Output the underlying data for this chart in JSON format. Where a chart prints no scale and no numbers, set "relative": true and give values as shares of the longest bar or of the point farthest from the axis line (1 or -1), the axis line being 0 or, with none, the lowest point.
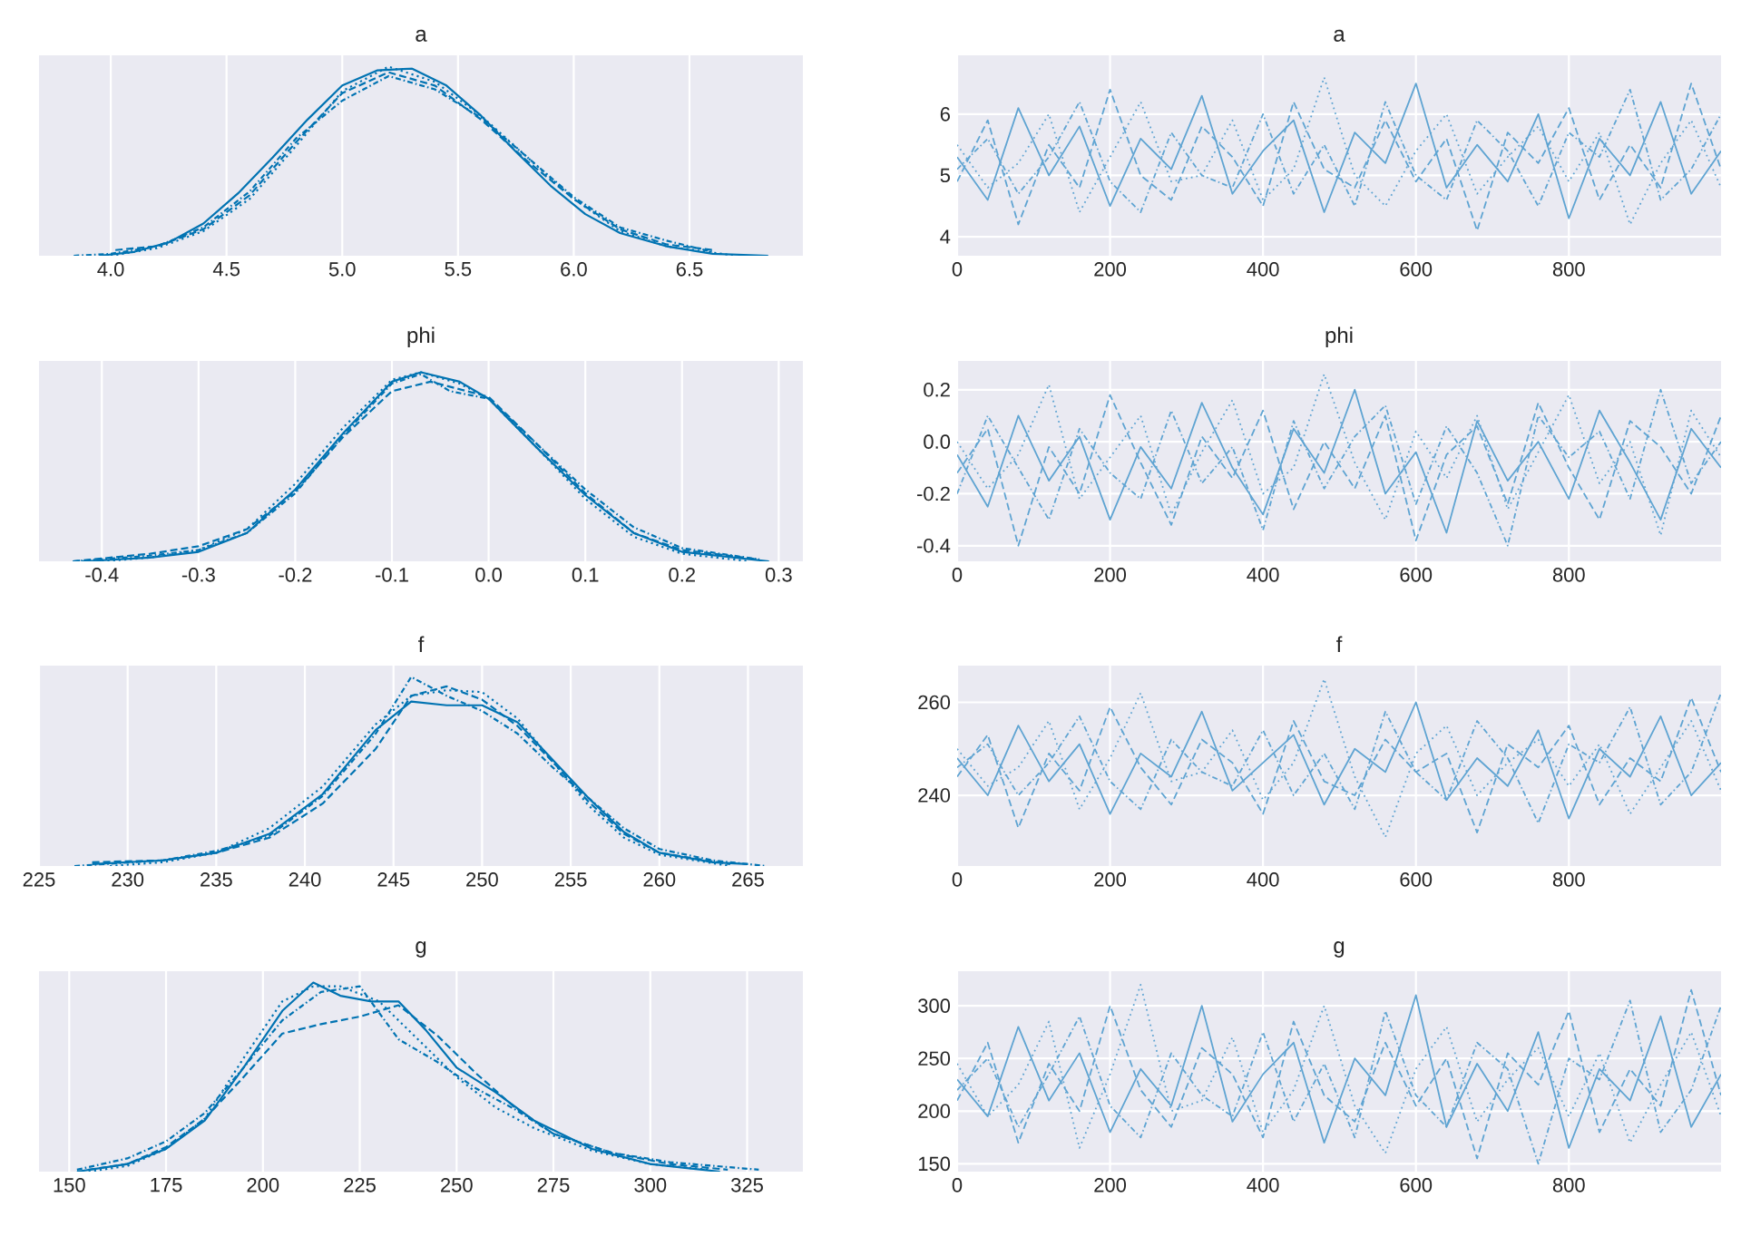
{
  "chart_data": [
    {
      "type": "line",
      "title": "a",
      "relative": true,
      "grid": "x",
      "tick_labels": "x",
      "xlim": [
        3.69,
        6.99
      ],
      "xticks": [
        {
          "value": 4.0,
          "label": "4.0"
        },
        4.5,
        {
          "value": 5.0,
          "label": "5.0"
        },
        5.5,
        {
          "value": 6.0,
          "label": "6.0"
        },
        6.5
      ],
      "series": [
        {
          "color": "#0173b2",
          "line_style": "solid",
          "x": [
            3.95,
            4.1,
            4.25,
            4.4,
            4.55,
            4.7,
            4.85,
            5.0,
            5.15,
            5.3,
            5.45,
            5.6,
            5.75,
            5.9,
            6.05,
            6.2,
            6.4,
            6.6,
            6.84
          ],
          "values": [
            0.0,
            0.02,
            0.07,
            0.17,
            0.33,
            0.52,
            0.72,
            0.9,
            0.98,
            0.99,
            0.9,
            0.74,
            0.55,
            0.37,
            0.22,
            0.12,
            0.05,
            0.01,
            0.0
          ]
        },
        {
          "color": "#0173b2",
          "line_style": "dashed",
          "x": [
            4.02,
            4.2,
            4.4,
            4.6,
            4.8,
            5.0,
            5.2,
            5.4,
            5.6,
            5.8,
            6.0,
            6.2,
            6.4,
            6.6
          ],
          "values": [
            0.03,
            0.05,
            0.14,
            0.32,
            0.6,
            0.86,
            0.97,
            0.9,
            0.72,
            0.5,
            0.3,
            0.14,
            0.06,
            0.03
          ]
        },
        {
          "color": "#0173b2",
          "line_style": "dotted",
          "x": [
            4.0,
            4.2,
            4.4,
            4.6,
            4.8,
            5.0,
            5.2,
            5.4,
            5.6,
            5.8,
            6.0,
            6.2,
            6.4,
            6.7
          ],
          "values": [
            0.0,
            0.04,
            0.13,
            0.3,
            0.58,
            0.87,
            1.0,
            0.92,
            0.74,
            0.52,
            0.3,
            0.13,
            0.05,
            0.0
          ]
        },
        {
          "color": "#0173b2",
          "line_style": "dashdot",
          "x": [
            3.84,
            4.0,
            4.2,
            4.4,
            4.6,
            4.8,
            5.0,
            5.2,
            5.4,
            5.6,
            5.8,
            6.0,
            6.2,
            6.4,
            6.6
          ],
          "values": [
            0.0,
            0.01,
            0.05,
            0.15,
            0.34,
            0.62,
            0.82,
            0.95,
            0.88,
            0.73,
            0.52,
            0.31,
            0.15,
            0.08,
            0.02
          ]
        }
      ]
    },
    {
      "type": "line",
      "title": "a",
      "grid": true,
      "xlim": [
        0,
        999
      ],
      "xticks": [
        0,
        200,
        400,
        600,
        800
      ],
      "ylim": [
        3.69,
        6.96
      ],
      "yticks": [
        4,
        5,
        6
      ],
      "series": [
        {
          "color": "#5fa4d2",
          "line_style": "solid",
          "x": [
            0,
            40,
            80,
            120,
            160,
            200,
            240,
            280,
            320,
            360,
            400,
            440,
            480,
            520,
            560,
            600,
            640,
            680,
            720,
            760,
            800,
            840,
            880,
            920,
            960,
            999
          ],
          "values": [
            5.3,
            4.6,
            6.1,
            5.0,
            5.8,
            4.5,
            5.6,
            5.1,
            6.3,
            4.7,
            5.4,
            5.9,
            4.4,
            5.7,
            5.2,
            6.5,
            4.8,
            5.5,
            4.9,
            6.0,
            4.3,
            5.6,
            5.0,
            6.2,
            4.7,
            5.4
          ]
        },
        {
          "color": "#5fa4d2",
          "line_style": "dashed",
          "x": [
            0,
            40,
            80,
            120,
            160,
            200,
            240,
            280,
            320,
            360,
            400,
            440,
            480,
            520,
            560,
            600,
            640,
            680,
            720,
            760,
            800,
            840,
            880,
            920,
            960,
            999
          ],
          "values": [
            4.9,
            5.9,
            4.2,
            5.5,
            4.8,
            6.4,
            5.0,
            4.6,
            5.8,
            5.3,
            4.5,
            6.2,
            5.1,
            4.8,
            5.9,
            4.9,
            5.6,
            4.1,
            5.7,
            5.2,
            6.1,
            4.6,
            5.5,
            4.8,
            6.5,
            5.1
          ]
        },
        {
          "color": "#5fa4d2",
          "line_style": "dotted",
          "x": [
            0,
            40,
            80,
            120,
            160,
            200,
            240,
            280,
            320,
            360,
            400,
            440,
            480,
            520,
            560,
            600,
            640,
            680,
            720,
            760,
            800,
            840,
            880,
            920,
            960,
            999
          ],
          "values": [
            5.5,
            4.8,
            5.2,
            6.0,
            4.4,
            5.3,
            6.2,
            4.9,
            5.0,
            5.9,
            4.6,
            5.1,
            6.6,
            5.0,
            4.5,
            5.4,
            6.0,
            4.7,
            5.3,
            5.8,
            4.9,
            5.7,
            4.2,
            5.2,
            5.9,
            4.8
          ]
        },
        {
          "color": "#5fa4d2",
          "line_style": "dashdot",
          "x": [
            0,
            40,
            80,
            120,
            160,
            200,
            240,
            280,
            320,
            360,
            400,
            440,
            480,
            520,
            560,
            600,
            640,
            680,
            720,
            760,
            800,
            840,
            880,
            920,
            960,
            999
          ],
          "values": [
            5.1,
            5.6,
            4.7,
            5.3,
            6.2,
            4.9,
            4.4,
            5.7,
            5.0,
            4.8,
            6.0,
            4.7,
            5.5,
            4.5,
            6.2,
            5.0,
            4.6,
            5.9,
            5.4,
            4.5,
            5.7,
            5.3,
            6.4,
            4.6,
            5.1,
            6.0
          ]
        }
      ]
    },
    {
      "type": "line",
      "title": "phi",
      "relative": true,
      "grid": "x",
      "tick_labels": "x",
      "xlim": [
        -0.465,
        0.325
      ],
      "xticks": [
        -0.4,
        -0.3,
        -0.2,
        -0.1,
        {
          "value": 0,
          "label": "0.0"
        },
        0.1,
        0.2,
        0.3
      ],
      "series": [
        {
          "color": "#0173b2",
          "line_style": "solid",
          "x": [
            -0.42,
            -0.35,
            -0.3,
            -0.25,
            -0.2,
            -0.15,
            -0.1,
            -0.07,
            -0.03,
            0.0,
            0.05,
            0.1,
            0.15,
            0.2,
            0.29
          ],
          "values": [
            0.0,
            0.02,
            0.05,
            0.15,
            0.38,
            0.68,
            0.95,
            1.0,
            0.95,
            0.86,
            0.6,
            0.35,
            0.15,
            0.05,
            0.0
          ]
        },
        {
          "color": "#0173b2",
          "line_style": "dashed",
          "x": [
            -0.43,
            -0.35,
            -0.3,
            -0.25,
            -0.2,
            -0.15,
            -0.1,
            -0.06,
            0.0,
            0.05,
            0.1,
            0.15,
            0.2,
            0.28
          ],
          "values": [
            0.0,
            0.04,
            0.08,
            0.17,
            0.37,
            0.66,
            0.9,
            0.95,
            0.87,
            0.62,
            0.36,
            0.15,
            0.06,
            0.01
          ]
        },
        {
          "color": "#0173b2",
          "line_style": "dotted",
          "x": [
            -0.4,
            -0.35,
            -0.3,
            -0.25,
            -0.2,
            -0.15,
            -0.1,
            -0.07,
            -0.03,
            0.0,
            0.05,
            0.1,
            0.15,
            0.2,
            0.27
          ],
          "values": [
            0.0,
            0.02,
            0.06,
            0.17,
            0.41,
            0.71,
            0.96,
            1.0,
            0.94,
            0.86,
            0.6,
            0.33,
            0.13,
            0.04,
            0.0
          ]
        },
        {
          "color": "#0173b2",
          "line_style": "dashdot",
          "x": [
            -0.43,
            -0.35,
            -0.3,
            -0.25,
            -0.2,
            -0.15,
            -0.1,
            -0.07,
            -0.04,
            0.0,
            0.05,
            0.1,
            0.15,
            0.2,
            0.28
          ],
          "values": [
            0.0,
            0.03,
            0.06,
            0.15,
            0.36,
            0.67,
            0.94,
            0.99,
            0.9,
            0.86,
            0.62,
            0.38,
            0.18,
            0.07,
            0.01
          ]
        }
      ]
    },
    {
      "type": "line",
      "title": "phi",
      "grid": true,
      "xlim": [
        0,
        999
      ],
      "xticks": [
        0,
        200,
        400,
        600,
        800
      ],
      "ylim": [
        -0.46,
        0.311
      ],
      "yticks": [
        -0.4,
        -0.2,
        {
          "value": 0,
          "label": "0.0"
        },
        0.2
      ],
      "series": [
        {
          "color": "#5fa4d2",
          "line_style": "solid",
          "x": [
            0,
            40,
            80,
            120,
            160,
            200,
            240,
            280,
            320,
            360,
            400,
            440,
            480,
            520,
            560,
            600,
            640,
            680,
            720,
            760,
            800,
            840,
            880,
            920,
            960,
            999
          ],
          "values": [
            -0.05,
            -0.25,
            0.1,
            -0.15,
            0.02,
            -0.3,
            -0.02,
            -0.18,
            0.15,
            -0.1,
            -0.28,
            0.05,
            -0.12,
            0.2,
            -0.2,
            -0.04,
            -0.35,
            0.08,
            -0.15,
            0.0,
            -0.22,
            0.12,
            -0.08,
            -0.3,
            0.05,
            -0.1
          ]
        },
        {
          "color": "#5fa4d2",
          "line_style": "dashed",
          "x": [
            0,
            40,
            80,
            120,
            160,
            200,
            240,
            280,
            320,
            360,
            400,
            440,
            480,
            520,
            560,
            600,
            640,
            680,
            720,
            760,
            800,
            840,
            880,
            920,
            960,
            999
          ],
          "values": [
            -0.12,
            0.05,
            -0.4,
            -0.02,
            -0.2,
            0.18,
            -0.08,
            -0.32,
            0.02,
            -0.14,
            0.12,
            -0.26,
            0.0,
            -0.18,
            0.1,
            -0.38,
            -0.05,
            0.06,
            -0.24,
            0.15,
            -0.1,
            -0.3,
            0.08,
            -0.02,
            -0.2,
            0.1
          ]
        },
        {
          "color": "#5fa4d2",
          "line_style": "dotted",
          "x": [
            0,
            40,
            80,
            120,
            160,
            200,
            240,
            280,
            320,
            360,
            400,
            440,
            480,
            520,
            560,
            600,
            640,
            680,
            720,
            760,
            800,
            840,
            880,
            920,
            960,
            999
          ],
          "values": [
            0.0,
            -0.18,
            -0.05,
            0.22,
            -0.22,
            -0.06,
            0.1,
            -0.28,
            -0.04,
            0.16,
            -0.2,
            -0.1,
            0.26,
            -0.08,
            -0.3,
            0.04,
            -0.14,
            0.1,
            -0.26,
            -0.04,
            0.18,
            -0.16,
            0.0,
            -0.36,
            0.12,
            -0.06
          ]
        },
        {
          "color": "#5fa4d2",
          "line_style": "dashdot",
          "x": [
            0,
            40,
            80,
            120,
            160,
            200,
            240,
            280,
            320,
            360,
            400,
            440,
            480,
            520,
            560,
            600,
            640,
            680,
            720,
            760,
            800,
            840,
            880,
            920,
            960,
            999
          ],
          "values": [
            -0.2,
            0.1,
            -0.1,
            -0.3,
            0.05,
            -0.12,
            -0.22,
            0.12,
            -0.16,
            -0.02,
            -0.34,
            0.08,
            -0.18,
            0.02,
            0.14,
            -0.24,
            0.06,
            -0.12,
            -0.4,
            0.1,
            -0.06,
            0.04,
            -0.22,
            0.2,
            -0.16,
            0.0
          ]
        }
      ]
    },
    {
      "type": "line",
      "title": "f",
      "relative": true,
      "grid": "x",
      "tick_labels": "x",
      "xlim": [
        225.0,
        268.1
      ],
      "xticks": [
        225,
        230,
        235,
        240,
        245,
        250,
        255,
        260,
        265
      ],
      "series": [
        {
          "color": "#0173b2",
          "line_style": "solid",
          "x": [
            228,
            232,
            235,
            238,
            241,
            244,
            246,
            248,
            250,
            252,
            254,
            256,
            258,
            260,
            263,
            265
          ],
          "values": [
            0.01,
            0.03,
            0.07,
            0.17,
            0.38,
            0.72,
            0.87,
            0.85,
            0.85,
            0.76,
            0.56,
            0.36,
            0.18,
            0.07,
            0.02,
            0.01
          ]
        },
        {
          "color": "#0173b2",
          "line_style": "dashed",
          "x": [
            228,
            232,
            235,
            238,
            241,
            244,
            246,
            248,
            250,
            252,
            254,
            256,
            258,
            260,
            264
          ],
          "values": [
            0.02,
            0.03,
            0.07,
            0.15,
            0.33,
            0.62,
            0.9,
            0.95,
            0.88,
            0.74,
            0.55,
            0.34,
            0.17,
            0.07,
            0.01
          ]
        },
        {
          "color": "#0173b2",
          "line_style": "dotted",
          "x": [
            229,
            232,
            235,
            238,
            241,
            244,
            246,
            248,
            250,
            252,
            254,
            256,
            258,
            260,
            264
          ],
          "values": [
            0.0,
            0.02,
            0.07,
            0.2,
            0.42,
            0.75,
            0.9,
            0.93,
            0.92,
            0.78,
            0.55,
            0.32,
            0.15,
            0.06,
            0.0
          ]
        },
        {
          "color": "#0173b2",
          "line_style": "dashdot",
          "x": [
            227,
            232,
            235,
            238,
            241,
            244,
            246,
            248,
            250,
            252,
            254,
            256,
            258,
            260,
            263,
            266
          ],
          "values": [
            0.0,
            0.03,
            0.08,
            0.16,
            0.37,
            0.7,
            1.0,
            0.9,
            0.82,
            0.7,
            0.52,
            0.36,
            0.2,
            0.09,
            0.03,
            0.0
          ]
        }
      ]
    },
    {
      "type": "line",
      "title": "f",
      "grid": true,
      "xlim": [
        0,
        999
      ],
      "xticks": [
        0,
        200,
        400,
        600,
        800
      ],
      "ylim": [
        224.8,
        267.9
      ],
      "yticks": [
        240,
        260
      ],
      "series": [
        {
          "color": "#5fa4d2",
          "line_style": "solid",
          "x": [
            0,
            40,
            80,
            120,
            160,
            200,
            240,
            280,
            320,
            360,
            400,
            440,
            480,
            520,
            560,
            600,
            640,
            680,
            720,
            760,
            800,
            840,
            880,
            920,
            960,
            999
          ],
          "values": [
            248,
            240,
            255,
            243,
            251,
            236,
            249,
            244,
            258,
            241,
            247,
            253,
            238,
            250,
            245,
            260,
            239,
            248,
            242,
            254,
            235,
            250,
            244,
            257,
            240,
            247
          ]
        },
        {
          "color": "#5fa4d2",
          "line_style": "dashed",
          "x": [
            0,
            40,
            80,
            120,
            160,
            200,
            240,
            280,
            320,
            360,
            400,
            440,
            480,
            520,
            560,
            600,
            640,
            680,
            720,
            760,
            800,
            840,
            880,
            920,
            960,
            999
          ],
          "values": [
            244,
            253,
            233,
            249,
            241,
            259,
            246,
            238,
            252,
            247,
            236,
            256,
            243,
            240,
            252,
            245,
            249,
            232,
            251,
            246,
            255,
            238,
            248,
            243,
            261,
            245
          ]
        },
        {
          "color": "#5fa4d2",
          "line_style": "dotted",
          "x": [
            0,
            40,
            80,
            120,
            160,
            200,
            240,
            280,
            320,
            360,
            400,
            440,
            480,
            520,
            560,
            600,
            640,
            680,
            720,
            760,
            800,
            840,
            880,
            920,
            960,
            999
          ],
          "values": [
            250,
            242,
            246,
            256,
            237,
            248,
            262,
            243,
            245,
            254,
            239,
            247,
            265,
            244,
            231,
            249,
            255,
            240,
            247,
            252,
            242,
            251,
            236,
            246,
            256,
            241
          ]
        },
        {
          "color": "#5fa4d2",
          "line_style": "dashdot",
          "x": [
            0,
            40,
            80,
            120,
            160,
            200,
            240,
            280,
            320,
            360,
            400,
            440,
            480,
            520,
            560,
            600,
            640,
            680,
            720,
            760,
            800,
            840,
            880,
            920,
            960,
            999
          ],
          "values": [
            246,
            251,
            240,
            247,
            257,
            243,
            237,
            252,
            245,
            242,
            254,
            240,
            249,
            237,
            258,
            245,
            239,
            256,
            248,
            234,
            251,
            247,
            259,
            238,
            245,
            262
          ]
        }
      ]
    },
    {
      "type": "line",
      "title": "g",
      "relative": true,
      "grid": "x",
      "tick_labels": "x",
      "xlim": [
        142.2,
        339.4
      ],
      "xticks": [
        150,
        175,
        200,
        225,
        250,
        275,
        300,
        325
      ],
      "series": [
        {
          "color": "#0173b2",
          "line_style": "solid",
          "x": [
            152,
            165,
            175,
            185,
            195,
            205,
            213,
            220,
            228,
            235,
            242,
            250,
            260,
            270,
            285,
            300,
            318
          ],
          "values": [
            0.0,
            0.04,
            0.12,
            0.27,
            0.55,
            0.85,
            1.0,
            0.93,
            0.9,
            0.9,
            0.75,
            0.55,
            0.42,
            0.27,
            0.12,
            0.04,
            0.0
          ]
        },
        {
          "color": "#0173b2",
          "line_style": "dashed",
          "x": [
            155,
            165,
            175,
            185,
            195,
            205,
            215,
            225,
            235,
            245,
            255,
            265,
            275,
            290,
            305,
            320
          ],
          "values": [
            0.01,
            0.04,
            0.13,
            0.28,
            0.5,
            0.73,
            0.78,
            0.82,
            0.88,
            0.72,
            0.52,
            0.34,
            0.2,
            0.1,
            0.04,
            0.01
          ]
        },
        {
          "color": "#0173b2",
          "line_style": "dotted",
          "x": [
            155,
            165,
            175,
            185,
            195,
            205,
            213,
            220,
            230,
            240,
            250,
            260,
            270,
            285,
            300,
            315
          ],
          "values": [
            0.0,
            0.03,
            0.12,
            0.28,
            0.6,
            0.9,
            0.98,
            0.98,
            0.9,
            0.7,
            0.5,
            0.34,
            0.23,
            0.11,
            0.04,
            0.01
          ]
        },
        {
          "color": "#0173b2",
          "line_style": "dashdot",
          "x": [
            152,
            165,
            175,
            185,
            195,
            205,
            215,
            225,
            235,
            245,
            255,
            265,
            275,
            290,
            305,
            328
          ],
          "values": [
            0.01,
            0.07,
            0.16,
            0.31,
            0.55,
            0.8,
            0.95,
            0.98,
            0.7,
            0.58,
            0.44,
            0.33,
            0.2,
            0.1,
            0.05,
            0.01
          ]
        }
      ]
    },
    {
      "type": "line",
      "title": "g",
      "grid": true,
      "xlim": [
        0,
        999
      ],
      "xticks": [
        0,
        200,
        400,
        600,
        800
      ],
      "ylim": [
        142.6,
        332.8
      ],
      "yticks": [
        150,
        200,
        250,
        300
      ],
      "series": [
        {
          "color": "#5fa4d2",
          "line_style": "solid",
          "x": [
            0,
            40,
            80,
            120,
            160,
            200,
            240,
            280,
            320,
            360,
            400,
            440,
            480,
            520,
            560,
            600,
            640,
            680,
            720,
            760,
            800,
            840,
            880,
            920,
            960,
            999
          ],
          "values": [
            230,
            195,
            280,
            210,
            255,
            180,
            240,
            205,
            300,
            190,
            235,
            265,
            170,
            250,
            215,
            310,
            185,
            245,
            200,
            275,
            165,
            240,
            210,
            290,
            185,
            235
          ]
        },
        {
          "color": "#5fa4d2",
          "line_style": "dashed",
          "x": [
            0,
            40,
            80,
            120,
            160,
            200,
            240,
            280,
            320,
            360,
            400,
            440,
            480,
            520,
            560,
            600,
            640,
            680,
            720,
            760,
            800,
            840,
            880,
            920,
            960,
            999
          ],
          "values": [
            210,
            265,
            170,
            245,
            200,
            300,
            220,
            185,
            260,
            235,
            175,
            285,
            215,
            190,
            265,
            205,
            250,
            155,
            255,
            225,
            295,
            180,
            240,
            205,
            315,
            215
          ]
        },
        {
          "color": "#5fa4d2",
          "line_style": "dotted",
          "x": [
            0,
            40,
            80,
            120,
            160,
            200,
            240,
            280,
            320,
            360,
            400,
            440,
            480,
            520,
            560,
            600,
            640,
            680,
            720,
            760,
            800,
            840,
            880,
            920,
            960,
            999
          ],
          "values": [
            245,
            195,
            225,
            285,
            165,
            235,
            320,
            200,
            210,
            270,
            180,
            220,
            300,
            205,
            160,
            240,
            280,
            190,
            230,
            260,
            195,
            255,
            170,
            225,
            275,
            195
          ]
        },
        {
          "color": "#5fa4d2",
          "line_style": "dashdot",
          "x": [
            0,
            40,
            80,
            120,
            160,
            200,
            240,
            280,
            320,
            360,
            400,
            440,
            480,
            520,
            560,
            600,
            640,
            680,
            720,
            760,
            800,
            840,
            880,
            920,
            960,
            999
          ],
          "values": [
            220,
            250,
            185,
            235,
            290,
            205,
            175,
            255,
            215,
            195,
            275,
            190,
            245,
            175,
            295,
            215,
            185,
            265,
            240,
            150,
            250,
            230,
            305,
            180,
            220,
            300
          ]
        }
      ]
    }
  ]
}
